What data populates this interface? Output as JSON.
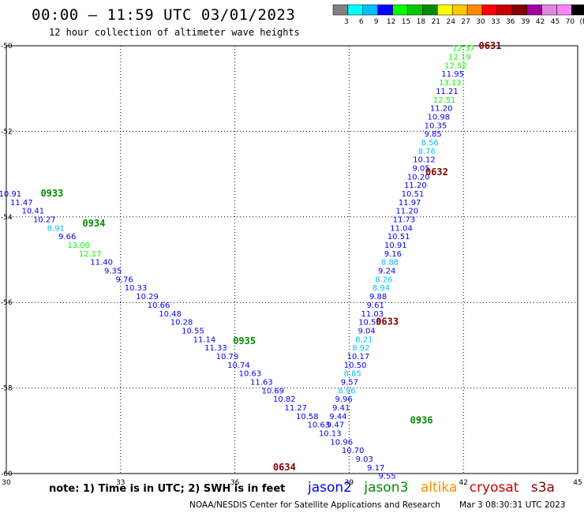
{
  "header": {
    "title": "00:00 – 11:59 UTC 03/01/2023",
    "subtitle": "12 hour collection of altimeter wave heights"
  },
  "colorbar": {
    "colors": [
      "#7f7f7f",
      "#00ffff",
      "#00bfff",
      "#0000ff",
      "#00ff00",
      "#00c800",
      "#008c00",
      "#ffff00",
      "#ffc800",
      "#ff8c00",
      "#ff0000",
      "#c80000",
      "#820000",
      "#a000a0",
      "#dd88dd",
      "#ff80ff",
      "#000000"
    ],
    "labels": [
      "3",
      "6",
      "9",
      "12",
      "15",
      "18",
      "21",
      "24",
      "27",
      "30",
      "33",
      "36",
      "39",
      "42",
      "45",
      "70",
      "(ft)"
    ]
  },
  "chart_data": {
    "type": "scatter",
    "xlim": [
      30,
      45
    ],
    "ylim": [
      -60,
      -50
    ],
    "x_ticks": [
      "30",
      "33",
      "36",
      "39",
      "42",
      "45"
    ],
    "y_ticks": [
      "-50",
      "-52",
      "-54",
      "-56",
      "-58",
      "-60"
    ],
    "grid": true,
    "series": [
      {
        "name": "jason2",
        "color": "#0000ff"
      },
      {
        "name": "jason3",
        "color": "#008c00"
      },
      {
        "name": "altika",
        "color": "#ff8c00"
      },
      {
        "name": "cryosat",
        "color": "#c80000"
      },
      {
        "name": "s3a",
        "color": "#820000"
      }
    ],
    "track_ascending": {
      "points": [
        {
          "x": 42.0,
          "y": -50.05,
          "v": "12.37",
          "c": "#00ff00"
        },
        {
          "x": 41.9,
          "y": -50.25,
          "v": "12.19",
          "c": "#00ff00"
        },
        {
          "x": 41.8,
          "y": -50.45,
          "v": "12.52",
          "c": "#00ff00"
        },
        {
          "x": 41.72,
          "y": -50.65,
          "v": "11.95",
          "c": "#0000ff"
        },
        {
          "x": 41.65,
          "y": -50.85,
          "v": "13.13",
          "c": "#00ff00"
        },
        {
          "x": 41.57,
          "y": -51.05,
          "v": "11.21",
          "c": "#0000ff"
        },
        {
          "x": 41.5,
          "y": -51.25,
          "v": "12.51",
          "c": "#00ff00"
        },
        {
          "x": 41.42,
          "y": -51.45,
          "v": "11.20",
          "c": "#0000ff"
        },
        {
          "x": 41.35,
          "y": -51.65,
          "v": "10.98",
          "c": "#0000ff"
        },
        {
          "x": 41.27,
          "y": -51.85,
          "v": "10.35",
          "c": "#0000ff"
        },
        {
          "x": 41.2,
          "y": -52.05,
          "v": "9.85",
          "c": "#0000ff"
        },
        {
          "x": 41.12,
          "y": -52.25,
          "v": "8.56",
          "c": "#00bfff"
        },
        {
          "x": 41.04,
          "y": -52.45,
          "v": "8.76",
          "c": "#00bfff"
        },
        {
          "x": 40.97,
          "y": -52.65,
          "v": "10.12",
          "c": "#0000ff"
        },
        {
          "x": 40.89,
          "y": -52.85,
          "v": "9.05",
          "c": "#0000ff"
        },
        {
          "x": 40.82,
          "y": -53.05,
          "v": "10.20",
          "c": "#0000ff"
        },
        {
          "x": 40.74,
          "y": -53.25,
          "v": "11.20",
          "c": "#0000ff"
        },
        {
          "x": 40.67,
          "y": -53.45,
          "v": "10.51",
          "c": "#0000ff"
        },
        {
          "x": 40.59,
          "y": -53.65,
          "v": "11.97",
          "c": "#0000ff"
        },
        {
          "x": 40.52,
          "y": -53.85,
          "v": "11.20",
          "c": "#0000ff"
        },
        {
          "x": 40.44,
          "y": -54.05,
          "v": "11.73",
          "c": "#0000ff"
        },
        {
          "x": 40.37,
          "y": -54.25,
          "v": "11.04",
          "c": "#0000ff"
        },
        {
          "x": 40.3,
          "y": -54.45,
          "v": "10.51",
          "c": "#0000ff"
        },
        {
          "x": 40.22,
          "y": -54.65,
          "v": "10.91",
          "c": "#0000ff"
        },
        {
          "x": 40.15,
          "y": -54.85,
          "v": "9.16",
          "c": "#0000ff"
        },
        {
          "x": 40.07,
          "y": -55.05,
          "v": "8.88",
          "c": "#00bfff"
        },
        {
          "x": 39.99,
          "y": -55.25,
          "v": "9.24",
          "c": "#0000ff"
        },
        {
          "x": 39.91,
          "y": -55.45,
          "v": "8.26",
          "c": "#00bfff"
        },
        {
          "x": 39.84,
          "y": -55.65,
          "v": "8.94",
          "c": "#00bfff"
        },
        {
          "x": 39.76,
          "y": -55.85,
          "v": "9.88",
          "c": "#0000ff"
        },
        {
          "x": 39.69,
          "y": -56.05,
          "v": "9.61",
          "c": "#0000ff"
        },
        {
          "x": 39.61,
          "y": -56.25,
          "v": "11.03",
          "c": "#0000ff"
        },
        {
          "x": 39.54,
          "y": -56.45,
          "v": "10.55",
          "c": "#0000ff"
        },
        {
          "x": 39.46,
          "y": -56.65,
          "v": "9.04",
          "c": "#0000ff"
        },
        {
          "x": 39.39,
          "y": -56.85,
          "v": "8.21",
          "c": "#00bfff"
        },
        {
          "x": 39.31,
          "y": -57.05,
          "v": "8.92",
          "c": "#00bfff"
        },
        {
          "x": 39.24,
          "y": -57.25,
          "v": "10.17",
          "c": "#0000ff"
        },
        {
          "x": 39.16,
          "y": -57.45,
          "v": "10.50",
          "c": "#0000ff"
        },
        {
          "x": 39.09,
          "y": -57.65,
          "v": "8.85",
          "c": "#00bfff"
        },
        {
          "x": 39.01,
          "y": -57.85,
          "v": "9.57",
          "c": "#0000ff"
        },
        {
          "x": 38.94,
          "y": -58.05,
          "v": "8.96",
          "c": "#00bfff"
        },
        {
          "x": 38.86,
          "y": -58.25,
          "v": "9.96",
          "c": "#0000ff"
        },
        {
          "x": 38.79,
          "y": -58.45,
          "v": "9.41",
          "c": "#0000ff"
        },
        {
          "x": 38.71,
          "y": -58.65,
          "v": "9.44",
          "c": "#0000ff"
        },
        {
          "x": 38.64,
          "y": -58.85,
          "v": "9.47",
          "c": "#0000ff"
        }
      ]
    },
    "track_descending": {
      "points": [
        {
          "x": 30.1,
          "y": -53.45,
          "v": "10.91",
          "c": "#0000ff"
        },
        {
          "x": 30.4,
          "y": -53.65,
          "v": "11.47",
          "c": "#0000ff"
        },
        {
          "x": 30.7,
          "y": -53.85,
          "v": "10.41",
          "c": "#0000ff"
        },
        {
          "x": 31.0,
          "y": -54.05,
          "v": "10.27",
          "c": "#0000ff"
        },
        {
          "x": 31.3,
          "y": -54.25,
          "v": "8.91",
          "c": "#00bfff"
        },
        {
          "x": 31.6,
          "y": -54.45,
          "v": "9.66",
          "c": "#0000ff"
        },
        {
          "x": 31.9,
          "y": -54.65,
          "v": "13.00",
          "c": "#00ff00"
        },
        {
          "x": 32.2,
          "y": -54.85,
          "v": "12.17",
          "c": "#00ff00"
        },
        {
          "x": 32.5,
          "y": -55.05,
          "v": "11.40",
          "c": "#0000ff"
        },
        {
          "x": 32.8,
          "y": -55.25,
          "v": "9.35",
          "c": "#0000ff"
        },
        {
          "x": 33.1,
          "y": -55.45,
          "v": "9.76",
          "c": "#0000ff"
        },
        {
          "x": 33.4,
          "y": -55.65,
          "v": "10.33",
          "c": "#0000ff"
        },
        {
          "x": 33.7,
          "y": -55.85,
          "v": "10.29",
          "c": "#0000ff"
        },
        {
          "x": 34.0,
          "y": -56.05,
          "v": "10.66",
          "c": "#0000ff"
        },
        {
          "x": 34.3,
          "y": -56.25,
          "v": "10.48",
          "c": "#0000ff"
        },
        {
          "x": 34.6,
          "y": -56.45,
          "v": "10.28",
          "c": "#0000ff"
        },
        {
          "x": 34.9,
          "y": -56.65,
          "v": "10.55",
          "c": "#0000ff"
        },
        {
          "x": 35.2,
          "y": -56.85,
          "v": "11.14",
          "c": "#0000ff"
        },
        {
          "x": 35.5,
          "y": -57.05,
          "v": "11.33",
          "c": "#0000ff"
        },
        {
          "x": 35.8,
          "y": -57.25,
          "v": "10.79",
          "c": "#0000ff"
        },
        {
          "x": 36.1,
          "y": -57.45,
          "v": "10.74",
          "c": "#0000ff"
        },
        {
          "x": 36.4,
          "y": -57.65,
          "v": "10.63",
          "c": "#0000ff"
        },
        {
          "x": 36.7,
          "y": -57.85,
          "v": "11.63",
          "c": "#0000ff"
        },
        {
          "x": 37.0,
          "y": -58.05,
          "v": "10.69",
          "c": "#0000ff"
        },
        {
          "x": 37.3,
          "y": -58.25,
          "v": "10.82",
          "c": "#0000ff"
        },
        {
          "x": 37.6,
          "y": -58.45,
          "v": "11.27",
          "c": "#0000ff"
        },
        {
          "x": 37.9,
          "y": -58.65,
          "v": "10.58",
          "c": "#0000ff"
        },
        {
          "x": 38.2,
          "y": -58.85,
          "v": "10.63",
          "c": "#0000ff"
        },
        {
          "x": 38.5,
          "y": -59.05,
          "v": "10.13",
          "c": "#0000ff"
        },
        {
          "x": 38.8,
          "y": -59.25,
          "v": "10.96",
          "c": "#0000ff"
        },
        {
          "x": 39.1,
          "y": -59.45,
          "v": "10.70",
          "c": "#0000ff"
        },
        {
          "x": 39.4,
          "y": -59.65,
          "v": "9.03",
          "c": "#0000ff"
        },
        {
          "x": 39.7,
          "y": -59.85,
          "v": "9.17",
          "c": "#0000ff"
        },
        {
          "x": 40.0,
          "y": -60.05,
          "v": "9.55",
          "c": "#0000ff"
        }
      ]
    },
    "time_labels": [
      {
        "text": "0631",
        "x": 42.7,
        "y": -50.0,
        "c": "#820000"
      },
      {
        "text": "0632",
        "x": 41.3,
        "y": -52.95,
        "c": "#820000"
      },
      {
        "text": "0633",
        "x": 40.0,
        "y": -56.45,
        "c": "#820000"
      },
      {
        "text": "0634",
        "x": 37.3,
        "y": -59.85,
        "c": "#820000"
      },
      {
        "text": "0933",
        "x": 31.2,
        "y": -53.45,
        "c": "#008c00"
      },
      {
        "text": "0934",
        "x": 32.3,
        "y": -54.15,
        "c": "#008c00"
      },
      {
        "text": "0935",
        "x": 36.25,
        "y": -56.9,
        "c": "#008c00"
      },
      {
        "text": "0936",
        "x": 40.9,
        "y": -58.75,
        "c": "#008c00"
      }
    ]
  },
  "footer": {
    "note": "note: 1) Time is in UTC; 2) SWH is in feet",
    "credit": "NOAA/NESDIS Center for Satellite Applications and Research",
    "timestamp": "Mar  3 08:30:31 UTC 2023"
  }
}
